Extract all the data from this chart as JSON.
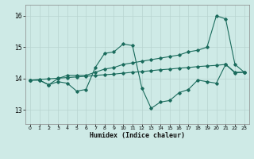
{
  "xlabel": "Humidex (Indice chaleur)",
  "bg_color": "#ceeae6",
  "line_color": "#1a6b5c",
  "grid_color": "#b8d4d0",
  "xlim": [
    -0.5,
    23.5
  ],
  "ylim": [
    12.55,
    16.35
  ],
  "yticks": [
    13,
    14,
    15,
    16
  ],
  "xticks": [
    0,
    1,
    2,
    3,
    4,
    5,
    6,
    7,
    8,
    9,
    10,
    11,
    12,
    13,
    14,
    15,
    16,
    17,
    18,
    19,
    20,
    21,
    22,
    23
  ],
  "series1_x": [
    0,
    1,
    2,
    3,
    4,
    5,
    6,
    7,
    8,
    9,
    10,
    11,
    12,
    13,
    14,
    15,
    16,
    17,
    18,
    19,
    20,
    21,
    22,
    23
  ],
  "series1_y": [
    13.95,
    13.95,
    13.8,
    13.9,
    13.85,
    13.6,
    13.65,
    14.35,
    14.8,
    14.85,
    15.1,
    15.05,
    13.7,
    13.05,
    13.25,
    13.3,
    13.55,
    13.65,
    13.95,
    13.9,
    13.85,
    14.45,
    14.2,
    14.2
  ],
  "series2_x": [
    0,
    1,
    2,
    3,
    4,
    5,
    6,
    7,
    8,
    9,
    10,
    11,
    12,
    13,
    14,
    15,
    16,
    17,
    18,
    19,
    20,
    21,
    22,
    23
  ],
  "series2_y": [
    13.95,
    13.95,
    13.8,
    14.0,
    14.1,
    14.1,
    14.1,
    14.2,
    14.3,
    14.35,
    14.45,
    14.5,
    14.55,
    14.6,
    14.65,
    14.7,
    14.75,
    14.85,
    14.9,
    15.0,
    16.0,
    15.9,
    14.45,
    14.2
  ],
  "series3_x": [
    0,
    1,
    2,
    3,
    4,
    5,
    6,
    7,
    8,
    9,
    10,
    11,
    12,
    13,
    14,
    15,
    16,
    17,
    18,
    19,
    20,
    21,
    22,
    23
  ],
  "series3_y": [
    13.95,
    13.97,
    13.99,
    14.01,
    14.03,
    14.05,
    14.07,
    14.1,
    14.12,
    14.14,
    14.17,
    14.2,
    14.22,
    14.25,
    14.28,
    14.3,
    14.33,
    14.35,
    14.38,
    14.4,
    14.42,
    14.45,
    14.18,
    14.2
  ]
}
